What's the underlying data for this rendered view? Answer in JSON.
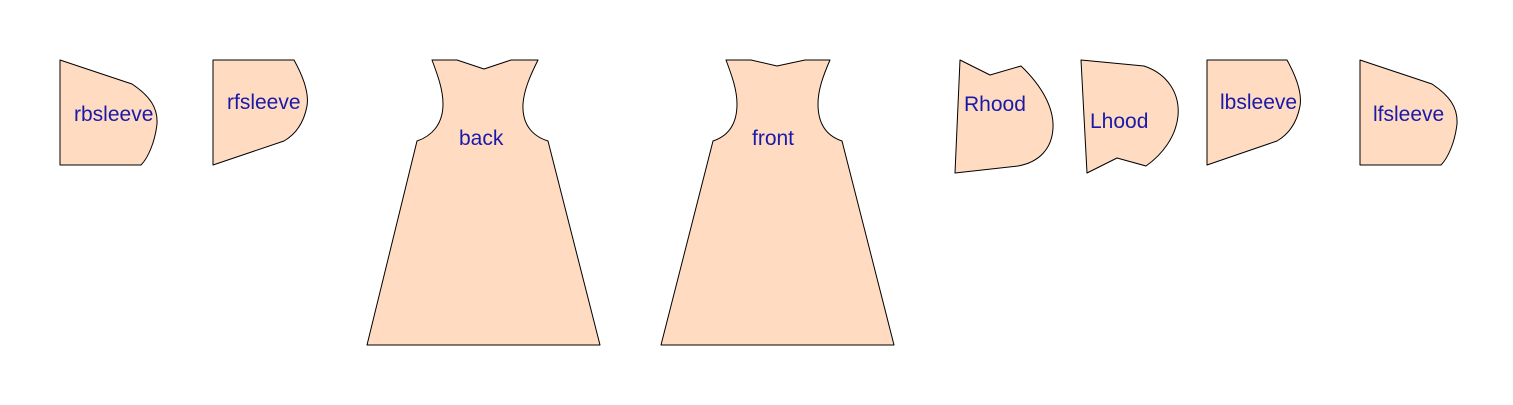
{
  "colors": {
    "piece_fill": "#ffdbc2",
    "piece_stroke": "#000000",
    "label_color": "#1a1aa8",
    "background": "#ffffff"
  },
  "pieces": {
    "rbsleeve": {
      "label": "rbsleeve"
    },
    "rfsleeve": {
      "label": "rfsleeve"
    },
    "back": {
      "label": "back"
    },
    "front": {
      "label": "front"
    },
    "rhood": {
      "label": "Rhood"
    },
    "lhood": {
      "label": "Lhood"
    },
    "lbsleeve": {
      "label": "lbsleeve"
    },
    "lfsleeve": {
      "label": "lfsleeve"
    }
  }
}
